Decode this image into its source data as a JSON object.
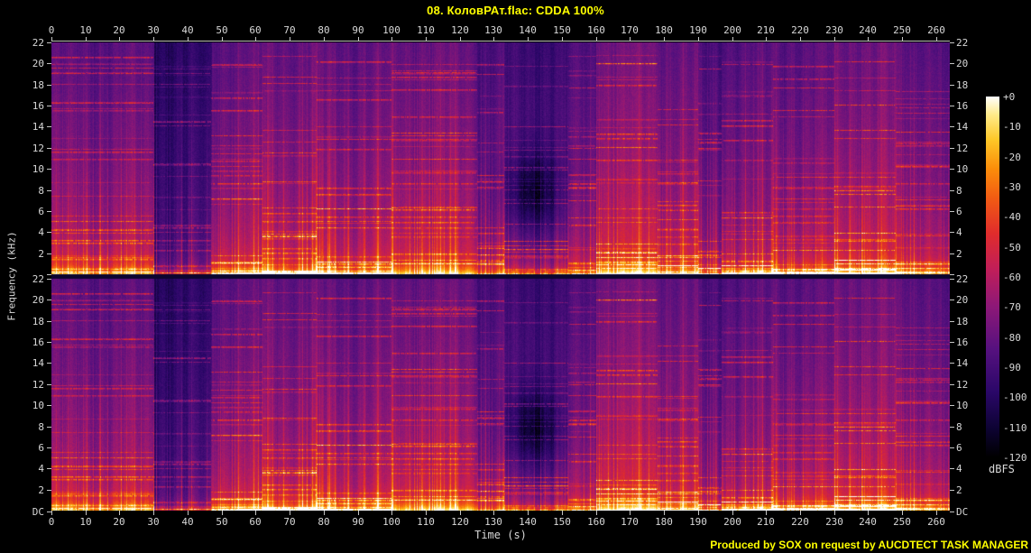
{
  "title": "08. КоловРАт.flac: CDDA 100%",
  "credit": "Produced by SOX on request by AUCDTECT TASK MANAGER",
  "colors": {
    "background": "#000000",
    "title_text": "#ffff00",
    "axis_text": "#d8d8d8",
    "tick": "#c4c4c4",
    "junction_line": "#0b052f"
  },
  "axes": {
    "time_label": "Time (s)",
    "freq_label": "Frequency (kHz)",
    "time_ticks": [
      0,
      10,
      20,
      30,
      40,
      50,
      60,
      70,
      80,
      90,
      100,
      110,
      120,
      130,
      140,
      150,
      160,
      170,
      180,
      190,
      200,
      210,
      220,
      230,
      240,
      250,
      260
    ],
    "freq_ticks": [
      "22",
      "20",
      "18",
      "16",
      "14",
      "12",
      "10",
      "8",
      "6",
      "4",
      "2"
    ],
    "dc_label": "DC"
  },
  "colorbar": {
    "unit": "dBFS",
    "ticks": [
      "+0",
      "-10",
      "-20",
      "-30",
      "-40",
      "-50",
      "-60",
      "-70",
      "-80",
      "-90",
      "-100",
      "-110",
      "-120"
    ]
  },
  "palette_stops": [
    {
      "v": 0.0,
      "c": "#000000"
    },
    {
      "v": 0.08,
      "c": "#0d0333"
    },
    {
      "v": 0.18,
      "c": "#2a0768"
    },
    {
      "v": 0.3,
      "c": "#56117f"
    },
    {
      "v": 0.42,
      "c": "#8e1877"
    },
    {
      "v": 0.52,
      "c": "#c01e59"
    },
    {
      "v": 0.62,
      "c": "#e02c2c"
    },
    {
      "v": 0.72,
      "c": "#f25c13"
    },
    {
      "v": 0.8,
      "c": "#fb8d0a"
    },
    {
      "v": 0.88,
      "c": "#fec727"
    },
    {
      "v": 0.95,
      "c": "#ffeb8a"
    },
    {
      "v": 1.0,
      "c": "#ffffff"
    }
  ],
  "chart_data": {
    "type": "heatmap",
    "subtype": "stereo audio spectrogram",
    "channels": 2,
    "x": {
      "label": "Time (s)",
      "range_s": [
        0,
        264
      ],
      "tick_step_s": 10
    },
    "y": {
      "label": "Frequency (kHz)",
      "range_khz_per_channel": [
        0,
        22
      ],
      "tick_step_khz": 2
    },
    "z": {
      "label": "dBFS",
      "range_db": [
        0,
        -120
      ],
      "tick_step_db": 10
    },
    "segments_loudness": [
      [
        0,
        30,
        0.7
      ],
      [
        30,
        47,
        0.4
      ],
      [
        47,
        62,
        0.73
      ],
      [
        62,
        78,
        0.76
      ],
      [
        78,
        100,
        0.73
      ],
      [
        100,
        125,
        0.77
      ],
      [
        125,
        133,
        0.6
      ],
      [
        133,
        152,
        0.52
      ],
      [
        152,
        160,
        0.63
      ],
      [
        160,
        178,
        0.83
      ],
      [
        178,
        190,
        0.76
      ],
      [
        190,
        197,
        0.6
      ],
      [
        197,
        212,
        0.68
      ],
      [
        212,
        230,
        0.71
      ],
      [
        230,
        248,
        0.8
      ],
      [
        248,
        264,
        0.72
      ]
    ],
    "dark_patch": {
      "t_s": [
        130,
        153
      ],
      "f_khz": [
        4,
        12
      ]
    },
    "notes": "bright band below ~2 kHz; quiet passage 30-47 s; dark patch ~133-152 s; dense harmonic streaks 160-190 s and 230-248 s; both channels nearly identical"
  }
}
